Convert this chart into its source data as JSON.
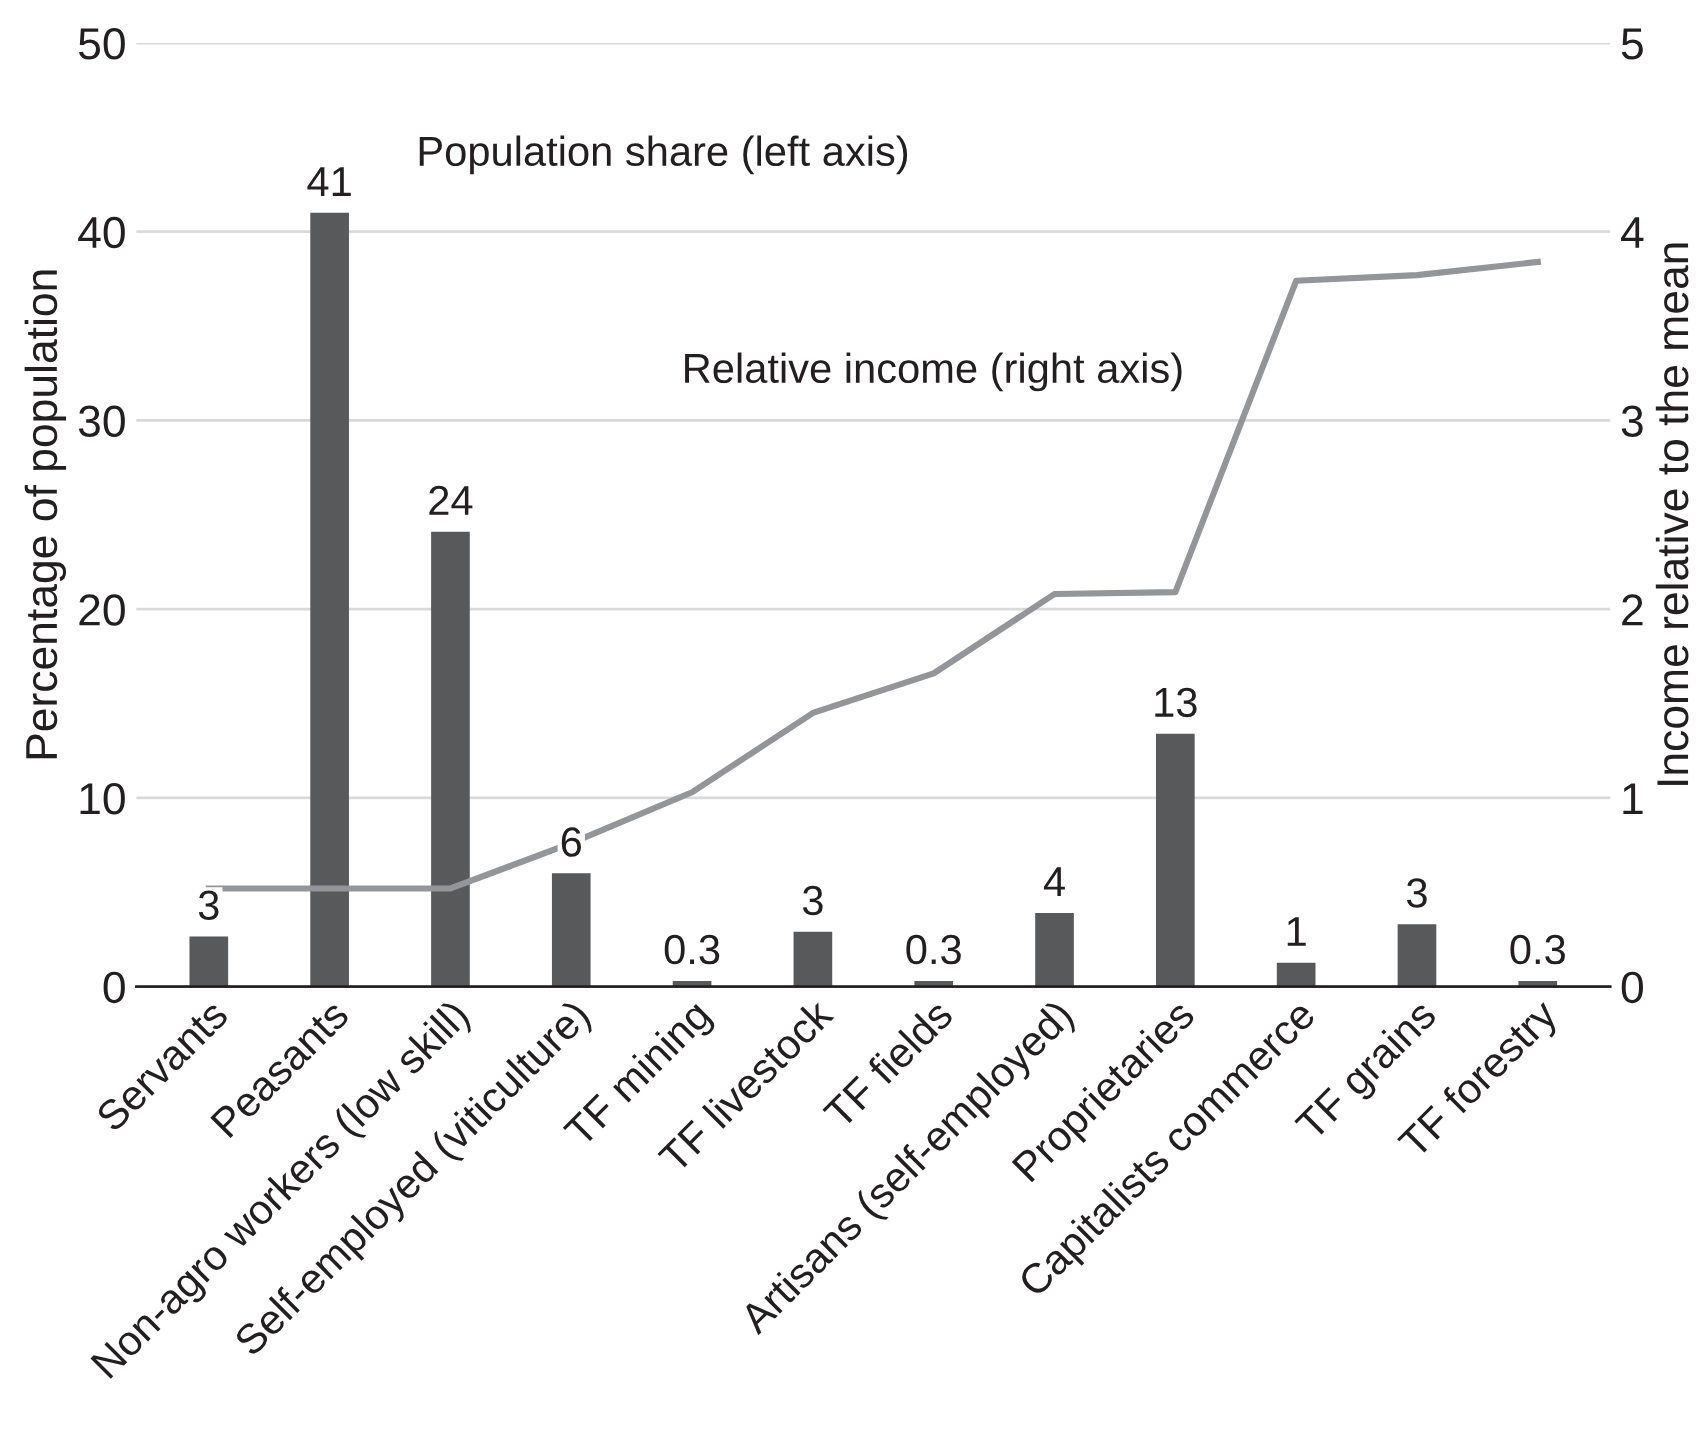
{
  "chart_data": {
    "type": "bar",
    "categories": [
      "Servants",
      "Peasants",
      "Non-agro workers (low skill)",
      "Self-employed (viticulture)",
      "TF mining",
      "TF livestock",
      "TF fields",
      "Artisans (self-employed)",
      "Proprietaries",
      "Capitalists commerce",
      "TF grains",
      "TF forestry"
    ],
    "ylabel": "Percentage of population",
    "y2label": "Income relative to the mean",
    "ylim": [
      0,
      50
    ],
    "yticks": [
      0,
      10,
      20,
      30,
      40,
      50
    ],
    "y2lim": [
      0,
      5
    ],
    "y2ticks": [
      0,
      1,
      2,
      3,
      4,
      5
    ],
    "grid": "y",
    "legend": false,
    "series": [
      {
        "name": "Population share (left axis)",
        "color": "#58595b",
        "values": [
          2.65,
          41.0,
          24.1,
          6.0,
          0.3,
          2.9,
          0.3,
          3.9,
          13.4,
          1.26,
          3.3,
          0.3
        ],
        "value_labels": [
          "3",
          "41",
          "24",
          "6",
          "0.3",
          "3",
          "0.3",
          "4",
          "13",
          "1",
          "3",
          "0.3"
        ]
      },
      {
        "name": "Relative income (right axis)",
        "type": "line",
        "axis": "y2",
        "color": "#939598",
        "values": [
          0.52,
          0.52,
          0.52,
          0.76,
          1.03,
          1.45,
          1.66,
          2.08,
          2.09,
          3.74,
          3.77,
          3.84
        ]
      }
    ]
  }
}
